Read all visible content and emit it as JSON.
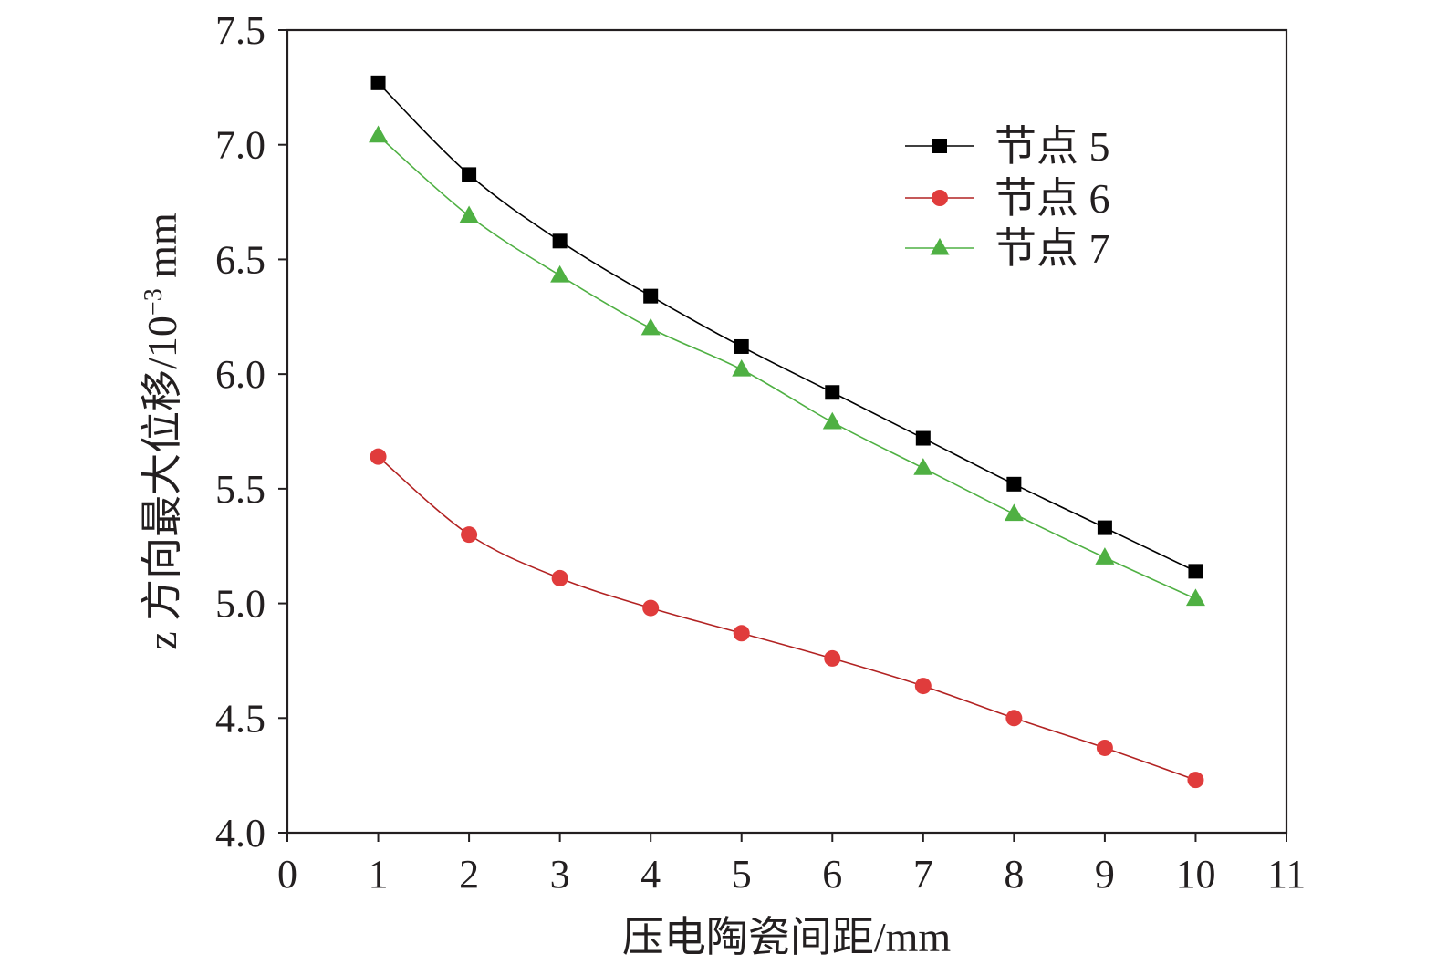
{
  "chart_data": {
    "type": "line",
    "xlabel": "压电陶瓷间距/mm",
    "ylabel_main": "z 方向最大位移/10",
    "ylabel_sup": "−3",
    "ylabel_unit": " mm",
    "xlim": [
      0,
      11
    ],
    "ylim": [
      4.0,
      7.5
    ],
    "x_ticks": [
      "0",
      "1",
      "2",
      "3",
      "4",
      "5",
      "6",
      "7",
      "8",
      "9",
      "10",
      "11"
    ],
    "y_ticks": [
      "4.0",
      "4.5",
      "5.0",
      "5.5",
      "6.0",
      "6.5",
      "7.0",
      "7.5"
    ],
    "x": [
      1,
      2,
      3,
      4,
      5,
      6,
      7,
      8,
      9,
      10
    ],
    "grid": false,
    "legend_position": "top-right",
    "series": [
      {
        "name": "节点 5",
        "marker": "square",
        "color": "#000000",
        "line_color": "#000000",
        "values": [
          7.27,
          6.87,
          6.58,
          6.34,
          6.12,
          5.92,
          5.72,
          5.52,
          5.33,
          5.14
        ]
      },
      {
        "name": "节点 6",
        "marker": "circle",
        "color": "#e03c3c",
        "line_color": "#b22222",
        "values": [
          5.64,
          5.3,
          5.11,
          4.98,
          4.87,
          4.76,
          4.64,
          4.5,
          4.37,
          4.23
        ]
      },
      {
        "name": "节点 7",
        "marker": "triangle",
        "color": "#4fb043",
        "line_color": "#4fb043",
        "values": [
          7.04,
          6.69,
          6.43,
          6.2,
          6.02,
          5.79,
          5.59,
          5.39,
          5.2,
          5.02
        ]
      }
    ]
  }
}
